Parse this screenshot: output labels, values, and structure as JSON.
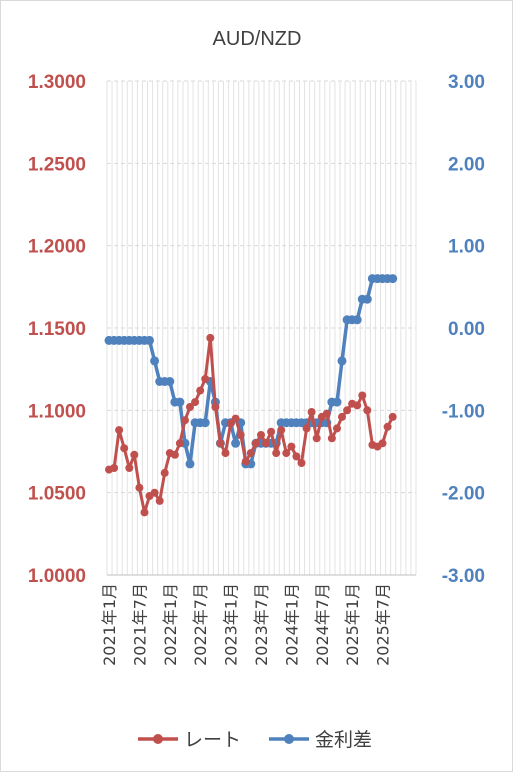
{
  "chart_data": {
    "type": "line",
    "title": "AUD/NZD",
    "left_axis": {
      "ticks": [
        "1.3000",
        "1.2500",
        "1.2000",
        "1.1500",
        "1.1000",
        "1.0500",
        "1.0000"
      ],
      "range": [
        1.0,
        1.3
      ],
      "color": "#c0504d"
    },
    "right_axis": {
      "ticks": [
        "3.00",
        "2.00",
        "1.00",
        "0.00",
        "-1.00",
        "-2.00",
        "-3.00"
      ],
      "range": [
        -3,
        3
      ],
      "color": "#4f81bd"
    },
    "x_tick_labels": [
      "2021年1月",
      "2021年7月",
      "2022年1月",
      "2022年7月",
      "2023年1月",
      "2023年7月",
      "2024年1月",
      "2024年7月",
      "2025年1月",
      "2025年7月"
    ],
    "x_months": [
      "2021-01",
      "2021-02",
      "2021-03",
      "2021-04",
      "2021-05",
      "2021-06",
      "2021-07",
      "2021-08",
      "2021-09",
      "2021-10",
      "2021-11",
      "2021-12",
      "2022-01",
      "2022-02",
      "2022-03",
      "2022-04",
      "2022-05",
      "2022-06",
      "2022-07",
      "2022-08",
      "2022-09",
      "2022-10",
      "2022-11",
      "2022-12",
      "2023-01",
      "2023-02",
      "2023-03",
      "2023-04",
      "2023-05",
      "2023-06",
      "2023-07",
      "2023-08",
      "2023-09",
      "2023-10",
      "2023-11",
      "2023-12",
      "2024-01",
      "2024-02",
      "2024-03",
      "2024-04",
      "2024-05",
      "2024-06",
      "2024-07",
      "2024-08",
      "2024-09",
      "2024-10",
      "2024-11",
      "2024-12",
      "2025-01",
      "2025-02",
      "2025-03",
      "2025-04",
      "2025-05",
      "2025-06",
      "2025-07",
      "2025-08",
      "2025-09"
    ],
    "grid": true,
    "legend_position": "bottom",
    "series": [
      {
        "name": "レート",
        "axis": "left",
        "color": "#c0504d",
        "values": [
          1.064,
          1.065,
          1.088,
          1.077,
          1.065,
          1.073,
          1.053,
          1.038,
          1.048,
          1.05,
          1.045,
          1.062,
          1.074,
          1.073,
          1.08,
          1.094,
          1.102,
          1.105,
          1.112,
          1.119,
          1.144,
          1.102,
          1.08,
          1.074,
          1.092,
          1.095,
          1.085,
          1.069,
          1.074,
          1.08,
          1.085,
          1.08,
          1.087,
          1.074,
          1.088,
          1.074,
          1.078,
          1.072,
          1.068,
          1.089,
          1.099,
          1.083,
          1.096,
          1.098,
          1.083,
          1.089,
          1.096,
          1.1,
          1.104,
          1.103,
          1.109,
          1.1,
          1.079,
          1.078,
          1.08,
          1.09,
          1.096
        ]
      },
      {
        "name": "金利差",
        "axis": "right",
        "color": "#4f81bd",
        "values": [
          -0.15,
          -0.15,
          -0.15,
          -0.15,
          -0.15,
          -0.15,
          -0.15,
          -0.15,
          -0.15,
          -0.4,
          -0.65,
          -0.65,
          -0.65,
          -0.9,
          -0.9,
          -1.4,
          -1.65,
          -1.15,
          -1.15,
          -1.15,
          -0.65,
          -0.9,
          -1.4,
          -1.15,
          -1.15,
          -1.4,
          -1.15,
          -1.65,
          -1.65,
          -1.4,
          -1.4,
          -1.4,
          -1.4,
          -1.4,
          -1.15,
          -1.15,
          -1.15,
          -1.15,
          -1.15,
          -1.15,
          -1.15,
          -1.15,
          -1.15,
          -1.15,
          -0.9,
          -0.9,
          -0.4,
          0.1,
          0.1,
          0.1,
          0.35,
          0.35,
          0.6,
          0.6,
          0.6,
          0.6,
          0.6
        ]
      }
    ]
  }
}
